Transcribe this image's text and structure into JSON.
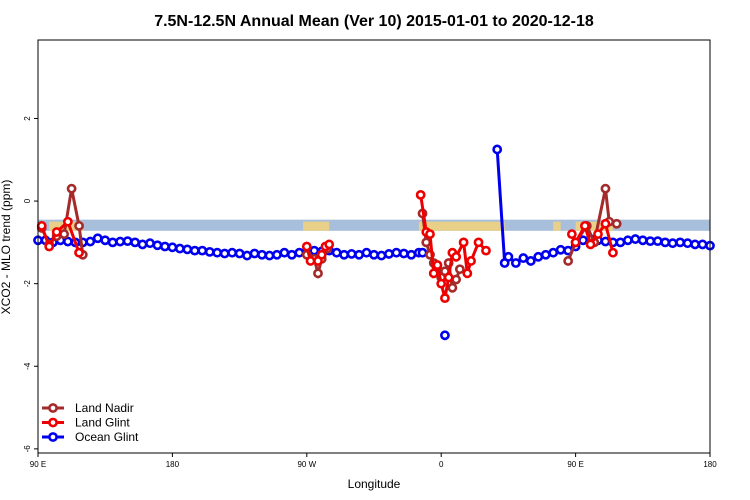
{
  "chart_data": {
    "type": "line",
    "title": "7.5N-12.5N Annual Mean (Ver 10)   2015-01-01 to 2020-12-18",
    "xlabel": "Longitude",
    "ylabel": "XCO2 - MLO trend (ppm)",
    "xlim": [
      -90,
      270
    ],
    "ylim": [
      -6.1,
      3.9
    ],
    "x_ticks": [
      {
        "value": -90,
        "label": "90 E"
      },
      {
        "value": -18,
        "label": "180"
      },
      {
        "value": 54,
        "label": "90 W"
      },
      {
        "value": 126,
        "label": "0"
      },
      {
        "value": 198,
        "label": "90 E"
      },
      {
        "value": 270,
        "label": "180"
      }
    ],
    "y_ticks": [
      {
        "value": -6,
        "label": "-6"
      },
      {
        "value": -4,
        "label": "-4"
      },
      {
        "value": -2,
        "label": "-2"
      },
      {
        "value": 0,
        "label": "0"
      },
      {
        "value": 2,
        "label": "2"
      }
    ],
    "grid": false,
    "legend_position": "bottom-left",
    "background_band": {
      "y_range": [
        -0.72,
        -0.45
      ],
      "color": "#a8bfdc",
      "land_color": "#f5d27a"
    },
    "series": [
      {
        "name": "Land Nadir",
        "color": "#a52a2a",
        "segments": [
          [
            [
              -88.0,
              -0.65
            ],
            [
              -84.0,
              -1.05
            ],
            [
              -80.0,
              -0.85
            ],
            [
              -76.0,
              -0.8
            ],
            [
              -72.0,
              0.3
            ],
            [
              -68.0,
              -0.6
            ],
            [
              -66.0,
              -1.3
            ]
          ],
          [
            [
              54.0,
              -1.3
            ],
            [
              58.0,
              -1.4
            ],
            [
              60.0,
              -1.75
            ],
            [
              62.0,
              -1.4
            ],
            [
              65.0,
              -1.15
            ]
          ],
          [
            [
              116.0,
              -0.3
            ],
            [
              118.0,
              -1.0
            ],
            [
              120.0,
              -1.3
            ],
            [
              122.0,
              -1.5
            ],
            [
              124.0,
              -1.65
            ],
            [
              126.0,
              -1.85
            ],
            [
              128.0,
              -1.7
            ],
            [
              130.0,
              -1.5
            ],
            [
              132.0,
              -2.1
            ],
            [
              134.0,
              -1.9
            ],
            [
              136.0,
              -1.65
            ]
          ],
          [
            [
              194.0,
              -1.45
            ],
            [
              198.0,
              -1.0
            ],
            [
              204.0,
              -0.6
            ],
            [
              208.0,
              -1.0
            ],
            [
              214.0,
              0.3
            ],
            [
              216.0,
              -0.5
            ],
            [
              220.0,
              -0.55
            ]
          ]
        ]
      },
      {
        "name": "Land Glint",
        "color": "#ee0000",
        "segments": [
          [
            [
              -88.0,
              -0.6
            ],
            [
              -84.0,
              -1.1
            ],
            [
              -80.0,
              -0.75
            ],
            [
              -74.0,
              -0.5
            ],
            [
              -68.0,
              -1.25
            ]
          ],
          [
            [
              54.0,
              -1.1
            ],
            [
              56.0,
              -1.45
            ],
            [
              60.0,
              -1.45
            ],
            [
              62.0,
              -1.3
            ],
            [
              64.0,
              -1.1
            ],
            [
              66.0,
              -1.05
            ]
          ],
          [
            [
              115.0,
              0.15
            ],
            [
              118.0,
              -0.75
            ],
            [
              120.0,
              -0.8
            ],
            [
              122.0,
              -1.75
            ],
            [
              124.0,
              -1.55
            ],
            [
              126.0,
              -2.0
            ],
            [
              128.0,
              -2.35
            ],
            [
              130.0,
              -1.85
            ],
            [
              132.0,
              -1.25
            ],
            [
              134.0,
              -1.35
            ],
            [
              138.0,
              -1.0
            ],
            [
              140.0,
              -1.75
            ],
            [
              142.0,
              -1.45
            ],
            [
              146.0,
              -1.0
            ],
            [
              150.0,
              -1.2
            ]
          ],
          [
            [
              196.0,
              -0.8
            ],
            [
              198.0,
              -1.0
            ],
            [
              203.0,
              -0.6
            ],
            [
              206.0,
              -1.05
            ],
            [
              210.0,
              -0.8
            ],
            [
              214.0,
              -0.55
            ],
            [
              218.0,
              -1.25
            ]
          ]
        ]
      },
      {
        "name": "Ocean Glint",
        "color": "#0000ee",
        "segments": [
          [
            [
              -90.0,
              -0.95
            ],
            [
              -86.0,
              -0.95
            ],
            [
              -82.0,
              -1.0
            ],
            [
              -78.0,
              -0.95
            ],
            [
              -74.0,
              -0.98
            ],
            [
              -70.0,
              -1.0
            ],
            [
              -66.0,
              -1.0
            ],
            [
              -62.0,
              -0.98
            ],
            [
              -58.0,
              -0.9
            ],
            [
              -54.0,
              -0.95
            ],
            [
              -50.0,
              -1.0
            ],
            [
              -46.0,
              -0.98
            ],
            [
              -42.0,
              -0.97
            ],
            [
              -38.0,
              -1.0
            ],
            [
              -34.0,
              -1.05
            ],
            [
              -30.0,
              -1.02
            ],
            [
              -26.0,
              -1.07
            ],
            [
              -22.0,
              -1.1
            ],
            [
              -18.0,
              -1.12
            ],
            [
              -14.0,
              -1.15
            ],
            [
              -10.0,
              -1.17
            ],
            [
              -6.0,
              -1.2
            ],
            [
              -2.0,
              -1.2
            ],
            [
              2.0,
              -1.23
            ],
            [
              6.0,
              -1.25
            ],
            [
              10.0,
              -1.27
            ],
            [
              14.0,
              -1.25
            ],
            [
              18.0,
              -1.27
            ],
            [
              22.0,
              -1.32
            ],
            [
              26.0,
              -1.27
            ],
            [
              30.0,
              -1.3
            ],
            [
              34.0,
              -1.32
            ],
            [
              38.0,
              -1.3
            ],
            [
              42.0,
              -1.25
            ],
            [
              46.0,
              -1.3
            ],
            [
              50.0,
              -1.25
            ],
            [
              54.0,
              -1.2
            ],
            [
              58.0,
              -1.2
            ],
            [
              62.0,
              -1.22
            ],
            [
              66.0,
              -1.2
            ],
            [
              70.0,
              -1.25
            ],
            [
              74.0,
              -1.3
            ],
            [
              78.0,
              -1.28
            ],
            [
              82.0,
              -1.3
            ],
            [
              86.0,
              -1.25
            ],
            [
              90.0,
              -1.3
            ],
            [
              94.0,
              -1.32
            ],
            [
              98.0,
              -1.28
            ],
            [
              102.0,
              -1.25
            ],
            [
              106.0,
              -1.27
            ],
            [
              110.0,
              -1.3
            ],
            [
              114.0,
              -1.25
            ],
            [
              116.0,
              -1.25
            ]
          ],
          [
            [
              128.0,
              -3.25
            ]
          ],
          [
            [
              156.0,
              1.25
            ],
            [
              160.0,
              -1.5
            ],
            [
              162.0,
              -1.35
            ],
            [
              166.0,
              -1.5
            ],
            [
              170.0,
              -1.38
            ],
            [
              174.0,
              -1.45
            ],
            [
              178.0,
              -1.35
            ],
            [
              182.0,
              -1.3
            ],
            [
              186.0,
              -1.25
            ],
            [
              190.0,
              -1.18
            ],
            [
              194.0,
              -1.2
            ],
            [
              198.0,
              -1.1
            ],
            [
              202.0,
              -0.95
            ],
            [
              206.0,
              -0.92
            ],
            [
              210.0,
              -0.95
            ],
            [
              214.0,
              -0.98
            ],
            [
              218.0,
              -1.0
            ],
            [
              222.0,
              -1.0
            ],
            [
              226.0,
              -0.95
            ],
            [
              230.0,
              -0.92
            ],
            [
              234.0,
              -0.95
            ],
            [
              238.0,
              -0.97
            ],
            [
              242.0,
              -0.97
            ],
            [
              246.0,
              -1.0
            ],
            [
              250.0,
              -1.02
            ],
            [
              254.0,
              -1.0
            ],
            [
              258.0,
              -1.02
            ],
            [
              262.0,
              -1.05
            ],
            [
              266.0,
              -1.05
            ],
            [
              270.0,
              -1.08
            ]
          ]
        ]
      }
    ]
  }
}
